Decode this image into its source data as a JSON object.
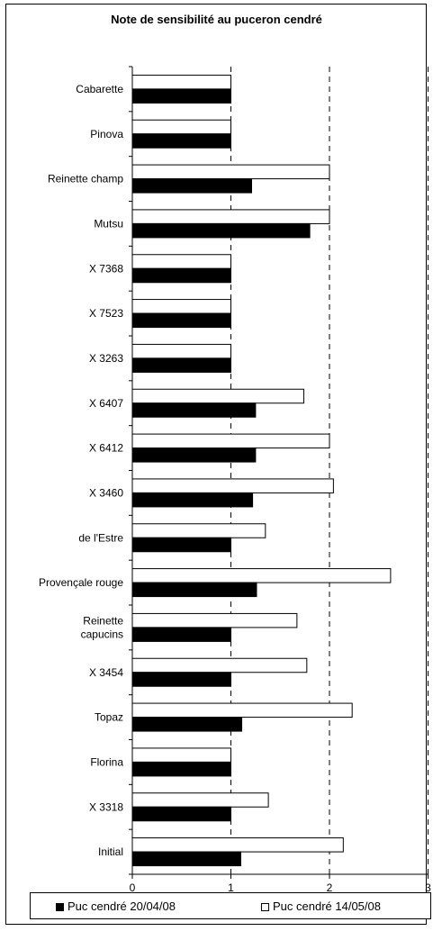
{
  "chart_data": {
    "type": "bar",
    "orientation": "horizontal",
    "title": "Note de sensibilité au puceron cendré",
    "xlabel": "",
    "ylabel": "",
    "xlim": [
      0,
      3
    ],
    "xticks": [
      "0",
      "1",
      "2",
      "3"
    ],
    "grid": "vertical dashed lines at 1, 2, 3",
    "legend_position": "bottom",
    "categories": [
      "Cabarette",
      "Pinova",
      "Reinette champ",
      "Mutsu",
      "X 7368",
      "X 7523",
      "X 3263",
      "X 6407",
      "X 6412",
      "X 3460",
      "de l'Estre",
      "Provençale rouge",
      "Reinette capucins",
      "X 3454",
      "Topaz",
      "Florina",
      "X 3318",
      "Initial"
    ],
    "category_lines": {
      "12": [
        "Reinette",
        "capucins"
      ]
    },
    "series": [
      {
        "name": "Puc cendré 20/04/08",
        "color": "#000000",
        "values": [
          1.0,
          1.0,
          1.21,
          1.8,
          1.0,
          1.0,
          1.0,
          1.25,
          1.25,
          1.22,
          1.0,
          1.26,
          1.0,
          1.0,
          1.11,
          1.0,
          1.0,
          1.1
        ]
      },
      {
        "name": "Puc cendré 14/05/08",
        "color": "#ffffff",
        "values": [
          1.0,
          1.0,
          2.0,
          2.0,
          1.0,
          1.0,
          1.0,
          1.74,
          2.0,
          2.04,
          1.35,
          2.62,
          1.67,
          1.77,
          2.23,
          1.0,
          1.38,
          2.14
        ]
      }
    ]
  }
}
